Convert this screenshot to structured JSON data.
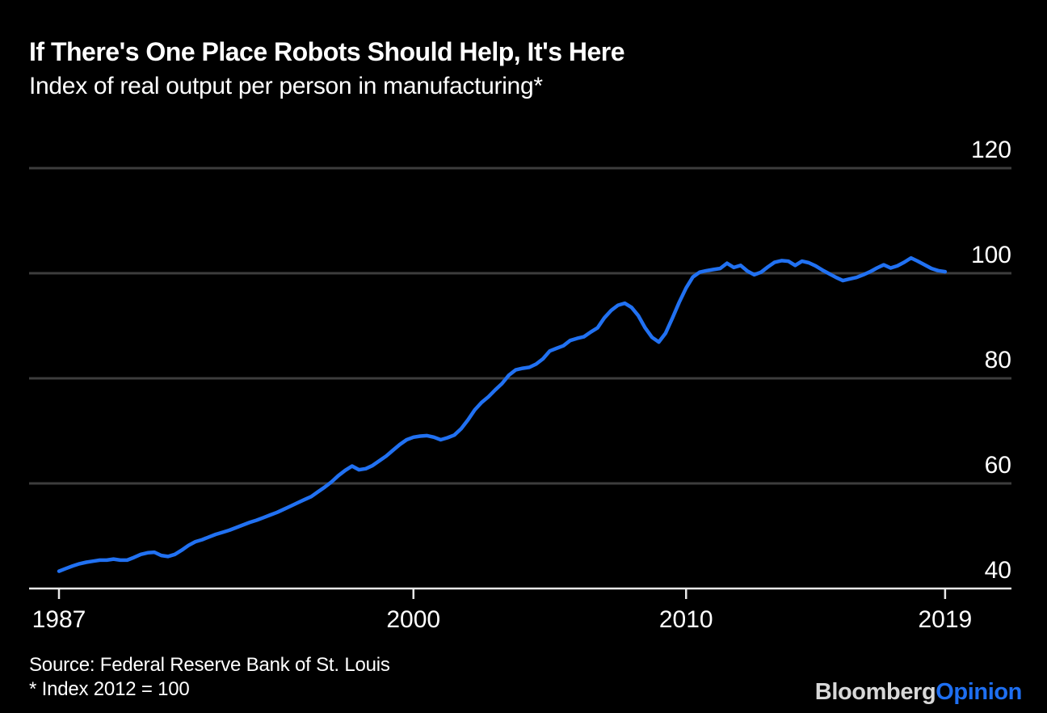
{
  "header": {
    "title": "If There's One Place Robots Should Help, It's Here",
    "subtitle": "Index of real output per person in manufacturing*"
  },
  "footer": {
    "source": "Source: Federal Reserve Bank of St. Louis",
    "footnote": "* Index 2012 = 100",
    "brand": {
      "name": "Bloomberg",
      "division": "Opinion"
    }
  },
  "colors": {
    "background": "#000000",
    "text": "#ffffff",
    "line": "#2171f2",
    "grid": "#3d3d3d",
    "axis": "#e8e8e8",
    "logo_bloomberg": "#d8d8d8",
    "logo_opinion": "#1e6ff2"
  },
  "chart_data": {
    "type": "line",
    "title": "If There's One Place Robots Should Help, It's Here",
    "subtitle": "Index of real output per person in manufacturing*",
    "xlabel": "",
    "ylabel": "",
    "grid": "horizontal",
    "legend": false,
    "xlim": [
      1987,
      2019.5
    ],
    "ylim": [
      40,
      124
    ],
    "yticks": [
      40,
      60,
      80,
      100,
      120
    ],
    "xticks": [
      {
        "label": "1987",
        "x": 1987
      },
      {
        "label": "2000",
        "x": 2000
      },
      {
        "label": "2010",
        "x": 2010
      },
      {
        "label": "2019",
        "x": 2019.5
      }
    ],
    "series_name": "Real output per person in manufacturing (index, 2012 = 100)",
    "x_start": 1987,
    "x_step": 0.25,
    "values": [
      43.3,
      43.8,
      44.3,
      44.7,
      45.0,
      45.2,
      45.4,
      45.4,
      45.6,
      45.4,
      45.4,
      45.9,
      46.5,
      46.8,
      46.9,
      46.3,
      46.1,
      46.5,
      47.3,
      48.2,
      48.9,
      49.3,
      49.8,
      50.3,
      50.7,
      51.1,
      51.6,
      52.1,
      52.6,
      53.0,
      53.5,
      54.0,
      54.5,
      55.1,
      55.7,
      56.3,
      56.9,
      57.5,
      58.4,
      59.3,
      60.3,
      61.5,
      62.5,
      63.3,
      62.6,
      62.8,
      63.4,
      64.3,
      65.2,
      66.3,
      67.4,
      68.3,
      68.8,
      69.0,
      69.1,
      68.8,
      68.3,
      68.7,
      69.2,
      70.4,
      72.1,
      74.0,
      75.4,
      76.5,
      77.8,
      79.0,
      80.6,
      81.6,
      81.9,
      82.1,
      82.7,
      83.7,
      85.2,
      85.7,
      86.2,
      87.2,
      87.6,
      87.9,
      88.8,
      89.6,
      91.5,
      92.9,
      93.9,
      94.3,
      93.5,
      91.9,
      89.6,
      87.8,
      86.9,
      88.6,
      91.5,
      94.5,
      97.2,
      99.3,
      100.2,
      100.5,
      100.7,
      100.9,
      101.9,
      101.1,
      101.5,
      100.4,
      99.7,
      100.2,
      101.2,
      102.1,
      102.4,
      102.3,
      101.5,
      102.3,
      102.0,
      101.4,
      100.6,
      99.9,
      99.2,
      98.6,
      98.9,
      99.2,
      99.7,
      100.3,
      101.0,
      101.6,
      101.0,
      101.4,
      102.1,
      102.9,
      102.3,
      101.6,
      100.9,
      100.5,
      100.3
    ]
  }
}
